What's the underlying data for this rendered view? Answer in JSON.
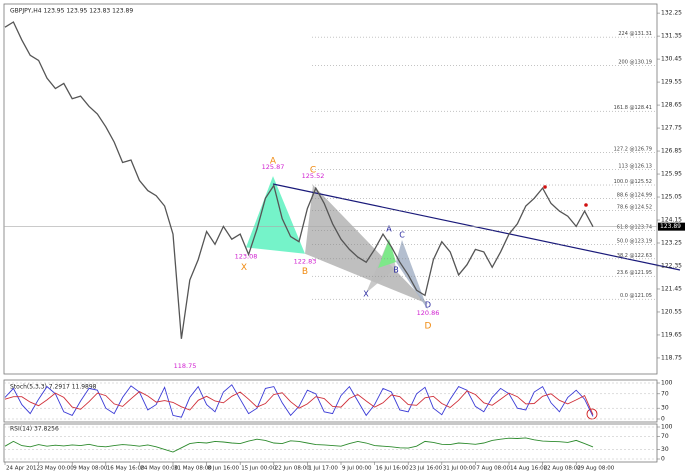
{
  "chart_data": [
    {
      "type": "line",
      "title": "GBPJPY,H4 123.95 123.95 123.83 123.89",
      "color": "#555555",
      "categories": [
        "24 Apr 2012",
        null,
        null,
        null,
        "3 May 00:00",
        null,
        null,
        null,
        "9 May 08:00",
        null,
        null,
        null,
        "16 May 16:00",
        null,
        null,
        null,
        "24 May 00:00",
        null,
        null,
        null,
        "31 May 08:00",
        null,
        null,
        null,
        "8 Jun 16:00",
        null,
        null,
        null,
        "15 Jun 00:00",
        null,
        null,
        null,
        "22 Jun 08:00",
        null,
        null,
        null,
        "1 Jul 17:00",
        null,
        null,
        null,
        "9 Jul 00:00",
        null,
        null,
        null,
        "16 Jul 16:00",
        null,
        null,
        null,
        "23 Jul 16:00",
        null,
        null,
        null,
        "31 Jul 00:00",
        null,
        null,
        null,
        "7 Aug 08:00",
        null,
        null,
        null,
        "14 Aug 16:00",
        null,
        null,
        null,
        "22 Aug 08:00",
        null,
        null,
        null,
        "29 Aug 08:00",
        null,
        null
      ],
      "values": [
        131.7,
        131.9,
        131.2,
        130.6,
        130.4,
        129.7,
        129.3,
        129.5,
        128.9,
        129.0,
        128.6,
        128.3,
        127.8,
        127.2,
        126.4,
        126.5,
        125.7,
        125.3,
        125.1,
        124.7,
        123.6,
        119.5,
        121.8,
        122.6,
        123.7,
        123.2,
        123.9,
        123.4,
        123.6,
        122.8,
        123.8,
        125.0,
        125.5,
        124.2,
        123.5,
        123.3,
        124.6,
        125.4,
        124.8,
        124.0,
        123.4,
        123.0,
        122.7,
        122.5,
        123.0,
        123.6,
        123.1,
        122.5,
        122.0,
        121.4,
        121.2,
        122.6,
        123.3,
        122.9,
        122.0,
        122.4,
        123.0,
        122.9,
        122.3,
        122.9,
        123.6,
        124.0,
        124.7,
        125.0,
        125.4,
        124.8,
        124.5,
        124.3,
        123.9,
        124.5,
        123.89
      ],
      "ylim": [
        118.2,
        132.45
      ],
      "yticks": [
        132.25,
        131.35,
        130.45,
        129.55,
        128.65,
        127.75,
        126.85,
        125.95,
        125.05,
        124.15,
        123.25,
        122.35,
        121.45,
        120.55,
        119.65,
        118.75
      ],
      "fib_levels": [
        {
          "value": 131.31,
          "label": "224 @131.31"
        },
        {
          "value": 130.19,
          "label": "200 @130.19"
        },
        {
          "value": 128.41,
          "label": "161.8 @128.41"
        },
        {
          "value": 126.79,
          "label": "127.2 @126.79"
        },
        {
          "value": 126.13,
          "label": "113 @126.13"
        },
        {
          "value": 125.52,
          "label": "100.0 @125.52"
        },
        {
          "value": 124.99,
          "label": "88.6 @124.99"
        },
        {
          "value": 124.52,
          "label": "78.6 @124.52"
        },
        {
          "value": 123.74,
          "label": "61.8 @123.74"
        },
        {
          "value": 123.19,
          "label": "50.0 @123.19"
        },
        {
          "value": 122.63,
          "label": "38.2 @122.63"
        },
        {
          "value": 121.95,
          "label": "23.6 @121.95"
        },
        {
          "value": 121.05,
          "label": "0.0 @121.05"
        }
      ],
      "pivot_prices": [
        125.87,
        123.08,
        122.83,
        125.52,
        120.86,
        118.75
      ],
      "pattern_labels": [
        "A",
        "X",
        "B",
        "C",
        "D"
      ],
      "pattern2_labels": [
        "X",
        "A",
        "B",
        "C",
        "D"
      ]
    },
    {
      "type": "line",
      "title": "Stoch(5,3,3) 7.2917 11.9898",
      "ylim": [
        0,
        100
      ],
      "yticks": [
        100,
        70,
        30,
        0
      ],
      "series": [
        {
          "color": "#3b3bd6",
          "values": [
            60,
            85,
            40,
            15,
            55,
            90,
            70,
            20,
            10,
            50,
            85,
            80,
            30,
            15,
            60,
            92,
            75,
            25,
            40,
            88,
            10,
            5,
            60,
            90,
            40,
            20,
            75,
            95,
            55,
            15,
            30,
            85,
            90,
            45,
            10,
            35,
            80,
            70,
            20,
            15,
            65,
            90,
            50,
            10,
            40,
            85,
            75,
            25,
            20,
            70,
            88,
            30,
            12,
            55,
            90,
            80,
            35,
            20,
            60,
            85,
            70,
            30,
            25,
            75,
            90,
            45,
            20,
            60,
            80,
            55,
            7.2917
          ]
        },
        {
          "color": "#d0303a",
          "values": [
            55,
            62,
            62,
            47,
            37,
            53,
            72,
            60,
            33,
            27,
            48,
            72,
            65,
            42,
            35,
            56,
            76,
            64,
            47,
            51,
            46,
            34,
            25,
            52,
            63,
            50,
            45,
            63,
            75,
            55,
            33,
            43,
            68,
            73,
            48,
            30,
            42,
            62,
            57,
            35,
            33,
            57,
            68,
            50,
            33,
            45,
            67,
            62,
            40,
            38,
            59,
            63,
            43,
            32,
            52,
            78,
            68,
            45,
            38,
            55,
            72,
            62,
            42,
            43,
            63,
            70,
            52,
            42,
            53,
            65,
            11.9898
          ]
        }
      ]
    },
    {
      "type": "line",
      "title": "RSI(14) 37.8256",
      "ylim": [
        0,
        100
      ],
      "yticks": [
        100,
        70,
        30,
        0
      ],
      "series": [
        {
          "color": "#2e8b2e",
          "values": [
            40,
            55,
            42,
            38,
            45,
            40,
            43,
            41,
            44,
            42,
            46,
            40,
            38,
            42,
            45,
            43,
            40,
            44,
            38,
            30,
            22,
            35,
            48,
            52,
            50,
            55,
            53,
            50,
            48,
            56,
            62,
            58,
            50,
            48,
            57,
            55,
            50,
            45,
            44,
            42,
            40,
            48,
            55,
            50,
            42,
            40,
            38,
            35,
            34,
            40,
            55,
            52,
            46,
            45,
            50,
            48,
            46,
            50,
            58,
            62,
            65,
            64,
            66,
            60,
            56,
            55,
            54,
            52,
            58,
            48,
            37.8256
          ]
        }
      ]
    }
  ]
}
